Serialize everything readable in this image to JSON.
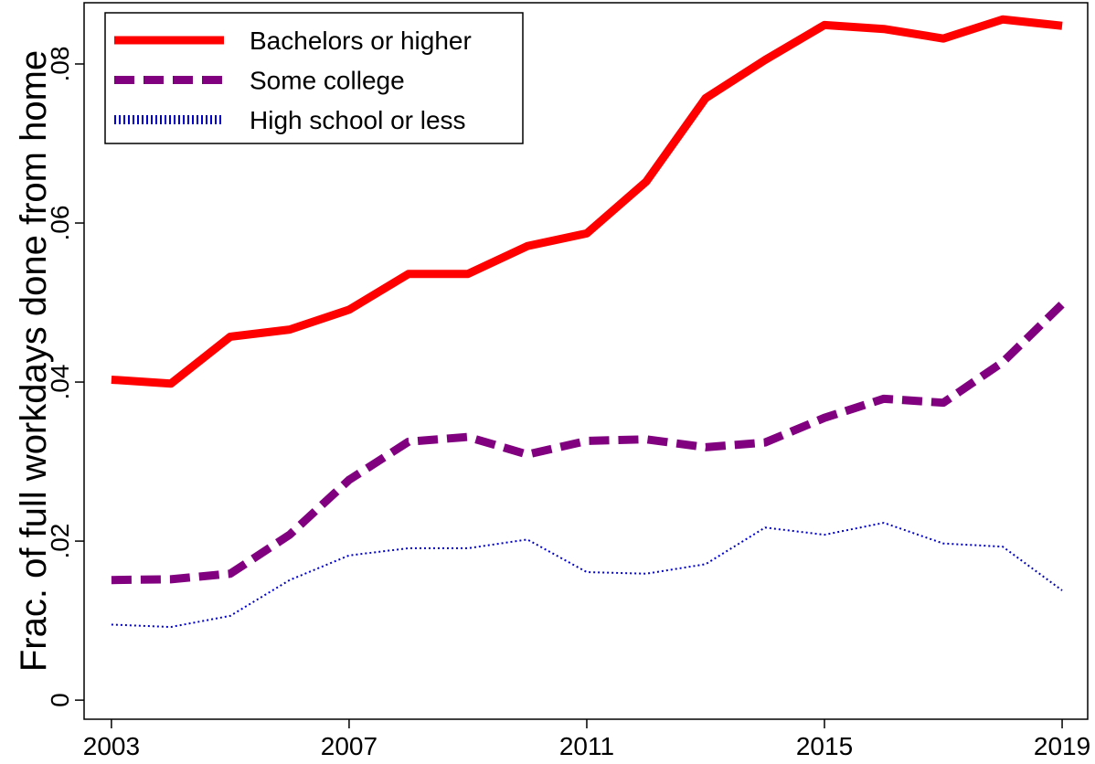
{
  "chart_data": {
    "type": "line",
    "ylabel": "Frac. of full workdays done from home",
    "x": [
      2003,
      2004,
      2005,
      2006,
      2007,
      2008,
      2009,
      2010,
      2011,
      2012,
      2013,
      2014,
      2015,
      2016,
      2017,
      2018,
      2019
    ],
    "series": [
      {
        "name": "Bachelors or higher",
        "color": "#ff0000",
        "dash": "solid",
        "values": [
          0.0403,
          0.0398,
          0.0457,
          0.0466,
          0.0491,
          0.0536,
          0.0536,
          0.0571,
          0.0587,
          0.0652,
          0.0757,
          0.0805,
          0.0849,
          0.0844,
          0.0832,
          0.0856,
          0.0848
        ]
      },
      {
        "name": "Some college",
        "color": "#800080",
        "dash": "dashed",
        "values": [
          0.0151,
          0.0152,
          0.0159,
          0.0208,
          0.0277,
          0.0325,
          0.0331,
          0.0309,
          0.0326,
          0.0328,
          0.0318,
          0.0324,
          0.0355,
          0.0379,
          0.0374,
          0.0425,
          0.0498
        ]
      },
      {
        "name": "High school or less",
        "color": "#0000cd",
        "dash": "dotted",
        "values": [
          0.0095,
          0.0092,
          0.0106,
          0.0151,
          0.0182,
          0.0191,
          0.0191,
          0.0202,
          0.0161,
          0.0159,
          0.0171,
          0.0217,
          0.0208,
          0.0223,
          0.0197,
          0.0193,
          0.0138
        ]
      }
    ],
    "xlim": [
      2002.54,
      2019.43
    ],
    "xticks": [
      2003,
      2007,
      2011,
      2015,
      2019
    ],
    "ylim": [
      -0.0024,
      0.0877
    ],
    "yticks": [
      0,
      {
        "value": 0.02,
        "label": ".02"
      },
      {
        "value": 0.04,
        "label": ".04"
      },
      {
        "value": 0.06,
        "label": ".06"
      },
      {
        "value": 0.08,
        "label": ".08"
      }
    ],
    "legend": "top-left",
    "grid": false
  }
}
